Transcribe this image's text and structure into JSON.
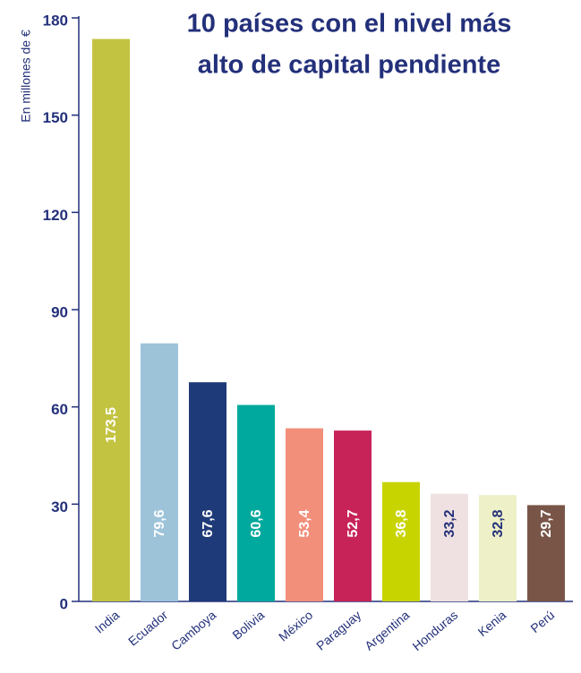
{
  "chart_data": {
    "type": "bar",
    "title": [
      "10 países con el nivel más",
      "alto de capital pendiente"
    ],
    "y_label": "En millones de €",
    "categories": [
      "India",
      "Ecuador",
      "Camboya",
      "Bolivia",
      "México",
      "Paraguay",
      "Argentina",
      "Honduras",
      "Kenia",
      "Perú"
    ],
    "values": [
      173.5,
      79.6,
      67.6,
      60.6,
      53.4,
      52.7,
      36.8,
      33.2,
      32.8,
      29.7
    ],
    "value_labels": [
      "173,5",
      "79,6",
      "67,6",
      "60,6",
      "53,4",
      "52,7",
      "36,8",
      "33,2",
      "32,8",
      "29,7"
    ],
    "colors": [
      "#c3c342",
      "#9dc3d9",
      "#1f3a78",
      "#00a99d",
      "#f28f7b",
      "#c72359",
      "#c8d400",
      "#efe1e1",
      "#eef0c7",
      "#795548"
    ],
    "ylim": [
      0,
      180
    ],
    "yticks": [
      0,
      30,
      60,
      90,
      120,
      150,
      180
    ],
    "grid": false
  }
}
